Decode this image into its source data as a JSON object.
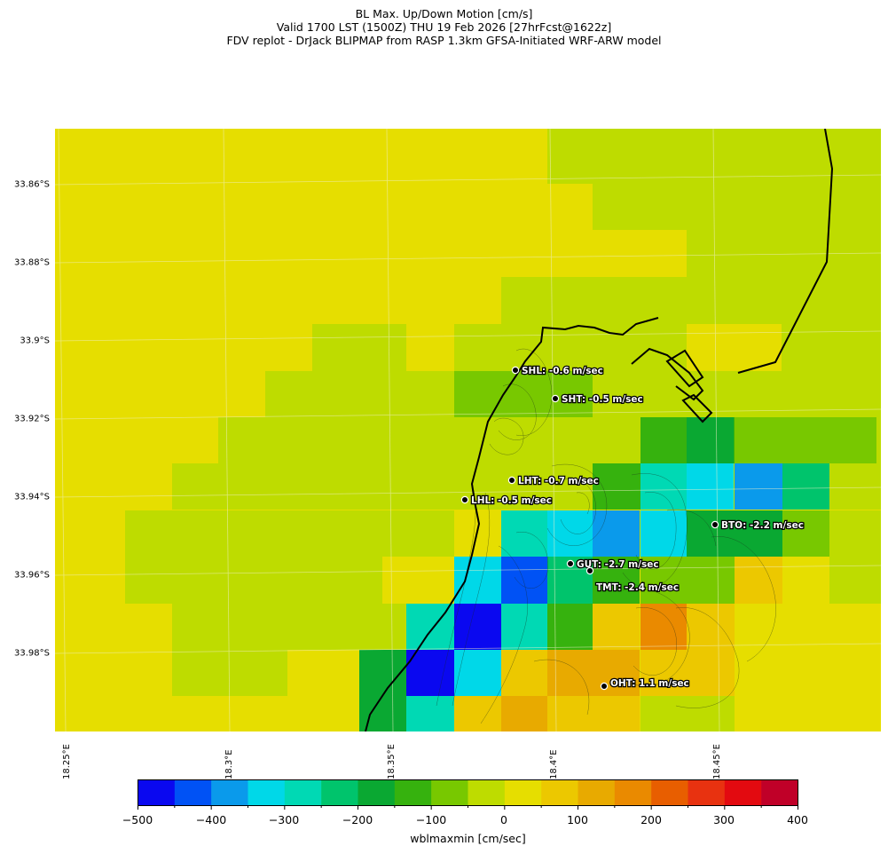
{
  "title": {
    "line1": "BL Max. Up/Down Motion [cm/s]",
    "line2": "Valid 1700 LST (1500Z) THU 19 Feb 2026 [27hrFcst@1622z]",
    "line3": "FDV replot - DrJack BLIPMAP from RASP 1.3km GFSA-Initiated WRF-ARW model"
  },
  "map": {
    "y_ticks": [
      "33.86°S",
      "33.88°S",
      "33.9°S",
      "33.92°S",
      "33.94°S",
      "33.96°S",
      "33.98°S"
    ],
    "x_ticks": [
      "18.25°E",
      "18.3°E",
      "18.35°E",
      "18.4°E",
      "18.45°E"
    ],
    "stations": [
      {
        "id": "SHL",
        "label": "SHL: -0.6 m/sec"
      },
      {
        "id": "SHT",
        "label": "SHT: -0.5 m/sec"
      },
      {
        "id": "LHT",
        "label": "LHT: -0.7 m/sec"
      },
      {
        "id": "LHL",
        "label": "LHL: -0.5 m/sec"
      },
      {
        "id": "BTO",
        "label": "BTO: -2.2 m/sec"
      },
      {
        "id": "GUT",
        "label": "GUT: -2.7 m/sec"
      },
      {
        "id": "TMT",
        "label": "TMT: -2.4 m/sec"
      },
      {
        "id": "OHT",
        "label": "OHT: 1.1 m/sec"
      }
    ]
  },
  "colorbar": {
    "ticks": [
      "−500",
      "−400",
      "−300",
      "−200",
      "−100",
      "0",
      "100",
      "200",
      "300",
      "400"
    ],
    "label": "wblmaxmin [cm/sec]",
    "colors": [
      "#0a08f0",
      "#0052f5",
      "#0a9aeb",
      "#00d8e8",
      "#00d9b4",
      "#00c46c",
      "#0aa832",
      "#36b20e",
      "#78c800",
      "#bedc00",
      "#e6de00",
      "#ecc800",
      "#e8aa00",
      "#ea8a00",
      "#e85e00",
      "#e83210",
      "#e30a10",
      "#c00028"
    ]
  },
  "colors": {
    "yellow": "#e6de00",
    "yellowgreen": "#bedc00",
    "green": "#78c800"
  }
}
